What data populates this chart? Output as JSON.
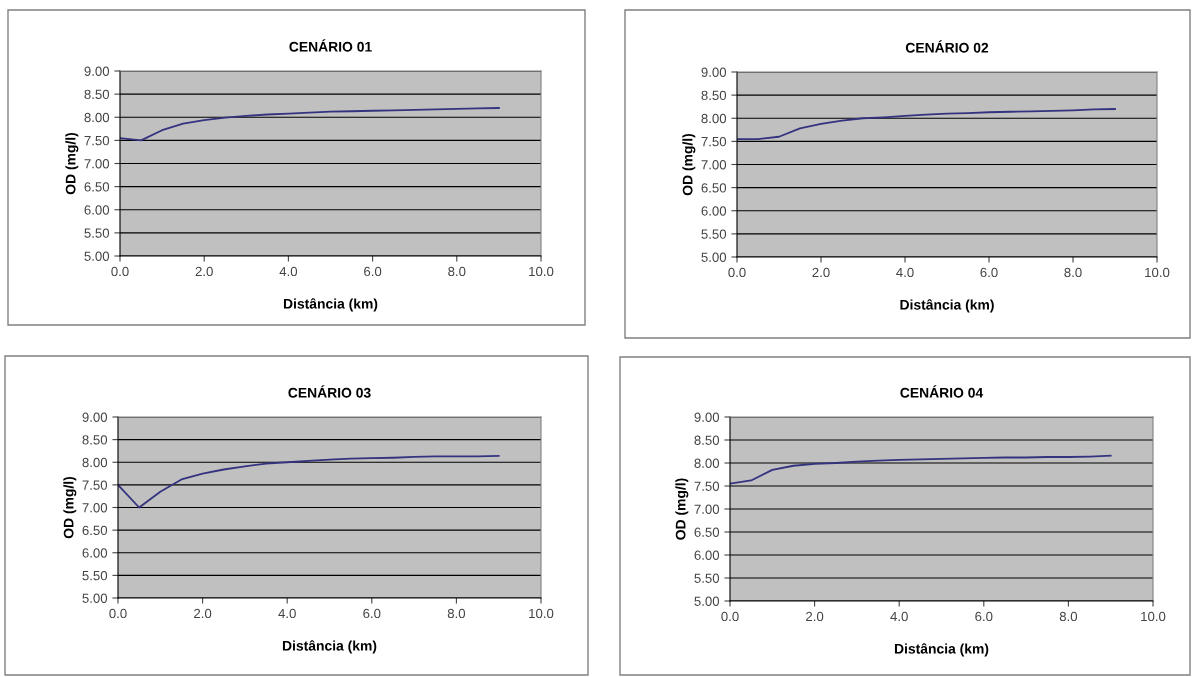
{
  "chart_data": [
    {
      "type": "line",
      "title": "CENÁRIO 01",
      "xlabel": "Distância (km)",
      "ylabel": "OD (mg/l)",
      "xlim": [
        0,
        10
      ],
      "ylim": [
        5,
        9
      ],
      "xticks": [
        {
          "value": 0,
          "label": "0.0"
        },
        {
          "value": 2,
          "label": "2.0"
        },
        {
          "value": 4,
          "label": "4.0"
        },
        {
          "value": 6,
          "label": "6.0"
        },
        {
          "value": 8,
          "label": "8.0"
        },
        {
          "value": 10,
          "label": "10.0"
        }
      ],
      "yticks": [
        {
          "value": 5,
          "label": "5.00"
        },
        {
          "value": 5.5,
          "label": "5.50"
        },
        {
          "value": 6,
          "label": "6.00"
        },
        {
          "value": 6.5,
          "label": "6.50"
        },
        {
          "value": 7,
          "label": "7.00"
        },
        {
          "value": 7.5,
          "label": "7.50"
        },
        {
          "value": 8,
          "label": "8.00"
        },
        {
          "value": 8.5,
          "label": "8.50"
        },
        {
          "value": 9,
          "label": "9.00"
        }
      ],
      "grid": "y",
      "marker": "none",
      "line_style": "solid",
      "x": [
        0,
        0.5,
        1,
        1.5,
        2,
        2.5,
        3,
        3.5,
        4,
        4.5,
        5,
        5.5,
        6,
        6.5,
        7,
        7.5,
        8,
        8.5,
        9
      ],
      "series": [
        {
          "color": "#33337f",
          "values": [
            7.55,
            7.5,
            7.72,
            7.86,
            7.94,
            7.99,
            8.03,
            8.06,
            8.08,
            8.1,
            8.12,
            8.13,
            8.14,
            8.15,
            8.16,
            8.17,
            8.18,
            8.19,
            8.2
          ]
        }
      ]
    },
    {
      "type": "line",
      "title": "CENÁRIO 02",
      "xlabel": "Distância (km)",
      "ylabel": "OD (mg/l)",
      "xlim": [
        0,
        10
      ],
      "ylim": [
        5,
        9
      ],
      "xticks": [
        {
          "value": 0,
          "label": "0.0"
        },
        {
          "value": 2,
          "label": "2.0"
        },
        {
          "value": 4,
          "label": "4.0"
        },
        {
          "value": 6,
          "label": "6.0"
        },
        {
          "value": 8,
          "label": "8.0"
        },
        {
          "value": 10,
          "label": "10.0"
        }
      ],
      "yticks": [
        {
          "value": 5,
          "label": "5.00"
        },
        {
          "value": 5.5,
          "label": "5.50"
        },
        {
          "value": 6,
          "label": "6.00"
        },
        {
          "value": 6.5,
          "label": "6.50"
        },
        {
          "value": 7,
          "label": "7.00"
        },
        {
          "value": 7.5,
          "label": "7.50"
        },
        {
          "value": 8,
          "label": "8.00"
        },
        {
          "value": 8.5,
          "label": "8.50"
        },
        {
          "value": 9,
          "label": "9.00"
        }
      ],
      "grid": "y",
      "marker": "none",
      "line_style": "solid",
      "x": [
        0,
        0.5,
        1,
        1.5,
        2,
        2.5,
        3,
        3.5,
        4,
        4.5,
        5,
        5.5,
        6,
        6.5,
        7,
        7.5,
        8,
        8.5,
        9
      ],
      "series": [
        {
          "color": "#33337f",
          "values": [
            7.55,
            7.55,
            7.6,
            7.78,
            7.88,
            7.95,
            8.0,
            8.02,
            8.05,
            8.08,
            8.1,
            8.11,
            8.13,
            8.14,
            8.15,
            8.16,
            8.17,
            8.19,
            8.2
          ]
        }
      ]
    },
    {
      "type": "line",
      "title": "CENÁRIO 03",
      "xlabel": "Distância (km)",
      "ylabel": "OD (mg/l)",
      "xlim": [
        0,
        10
      ],
      "ylim": [
        5,
        9
      ],
      "xticks": [
        {
          "value": 0,
          "label": "0.0"
        },
        {
          "value": 2,
          "label": "2.0"
        },
        {
          "value": 4,
          "label": "4.0"
        },
        {
          "value": 6,
          "label": "6.0"
        },
        {
          "value": 8,
          "label": "8.0"
        },
        {
          "value": 10,
          "label": "10.0"
        }
      ],
      "yticks": [
        {
          "value": 5,
          "label": "5.00"
        },
        {
          "value": 5.5,
          "label": "5.50"
        },
        {
          "value": 6,
          "label": "6.00"
        },
        {
          "value": 6.5,
          "label": "6.50"
        },
        {
          "value": 7,
          "label": "7.00"
        },
        {
          "value": 7.5,
          "label": "7.50"
        },
        {
          "value": 8,
          "label": "8.00"
        },
        {
          "value": 8.5,
          "label": "8.50"
        },
        {
          "value": 9,
          "label": "9.00"
        }
      ],
      "grid": "y",
      "marker": "none",
      "line_style": "solid",
      "x": [
        0,
        0.5,
        1,
        1.5,
        2,
        2.5,
        3,
        3.5,
        4,
        4.5,
        5,
        5.5,
        6,
        6.5,
        7,
        7.5,
        8,
        8.5,
        9
      ],
      "series": [
        {
          "color": "#33337f",
          "values": [
            7.5,
            7.0,
            7.35,
            7.62,
            7.75,
            7.84,
            7.91,
            7.97,
            8.0,
            8.03,
            8.06,
            8.08,
            8.09,
            8.1,
            8.12,
            8.13,
            8.13,
            8.13,
            8.14
          ]
        }
      ]
    },
    {
      "type": "line",
      "title": "CENÁRIO 04",
      "xlabel": "Distância (km)",
      "ylabel": "OD (mg/l)",
      "xlim": [
        0,
        10
      ],
      "ylim": [
        5,
        9
      ],
      "xticks": [
        {
          "value": 0,
          "label": "0.0"
        },
        {
          "value": 2,
          "label": "2.0"
        },
        {
          "value": 4,
          "label": "4.0"
        },
        {
          "value": 6,
          "label": "6.0"
        },
        {
          "value": 8,
          "label": "8.0"
        },
        {
          "value": 10,
          "label": "10.0"
        }
      ],
      "yticks": [
        {
          "value": 5,
          "label": "5.00"
        },
        {
          "value": 5.5,
          "label": "5.50"
        },
        {
          "value": 6,
          "label": "6.00"
        },
        {
          "value": 6.5,
          "label": "6.50"
        },
        {
          "value": 7,
          "label": "7.00"
        },
        {
          "value": 7.5,
          "label": "7.50"
        },
        {
          "value": 8,
          "label": "8.00"
        },
        {
          "value": 8.5,
          "label": "8.50"
        },
        {
          "value": 9,
          "label": "9.00"
        }
      ],
      "grid": "y",
      "marker": "none",
      "line_style": "solid",
      "x": [
        0,
        0.5,
        1,
        1.5,
        2,
        2.5,
        3,
        3.5,
        4,
        4.5,
        5,
        5.5,
        6,
        6.5,
        7,
        7.5,
        8,
        8.5,
        9
      ],
      "series": [
        {
          "color": "#33337f",
          "values": [
            7.55,
            7.62,
            7.85,
            7.94,
            7.98,
            8.0,
            8.03,
            8.05,
            8.07,
            8.08,
            8.09,
            8.1,
            8.11,
            8.12,
            8.12,
            8.13,
            8.13,
            8.14,
            8.16
          ]
        }
      ]
    }
  ]
}
